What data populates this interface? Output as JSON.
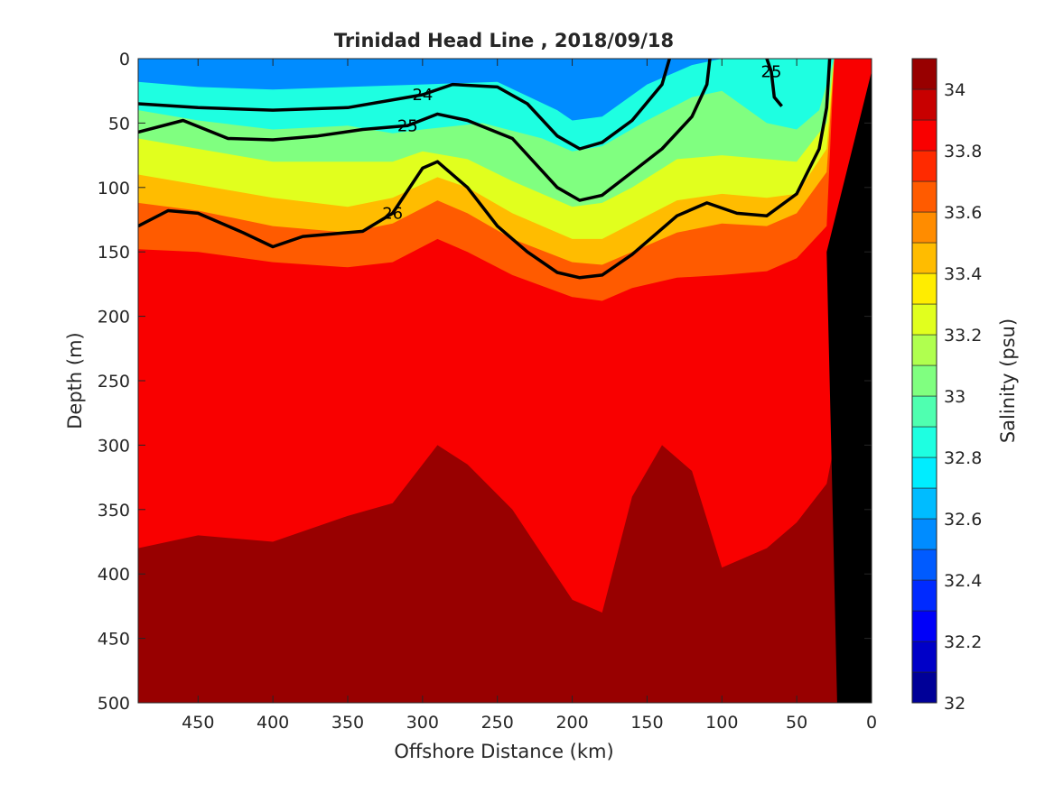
{
  "chart_data": {
    "type": "heatmap",
    "subtype": "filled-contour section with density contour overlay",
    "title": "Trinidad Head Line , 2018/09/18",
    "xlabel": "Offshore Distance (km)",
    "ylabel": "Depth (m)",
    "xlim": [
      490,
      0
    ],
    "ylim": [
      0,
      500
    ],
    "x_direction": "reversed",
    "y_direction": "reversed (depth increases downward)",
    "xticks": [
      "450",
      "400",
      "350",
      "300",
      "250",
      "200",
      "150",
      "100",
      "50",
      "0"
    ],
    "yticks": [
      "0",
      "50",
      "100",
      "150",
      "200",
      "250",
      "300",
      "350",
      "400",
      "450",
      "500"
    ],
    "colorbar": {
      "label": "Salinity (psu)",
      "range": [
        32,
        34.1
      ],
      "step": 0.1,
      "colormap": "jet",
      "ticks": [
        "32",
        "32.2",
        "32.4",
        "32.6",
        "32.8",
        "33",
        "33.2",
        "33.4",
        "33.6",
        "33.8",
        "34"
      ]
    },
    "salinity_layers": [
      {
        "isohaline": 32.8,
        "depth_profile": [
          [
            490,
            18
          ],
          [
            450,
            22
          ],
          [
            400,
            24
          ],
          [
            350,
            22
          ],
          [
            300,
            20
          ],
          [
            250,
            18
          ],
          [
            210,
            40
          ],
          [
            200,
            48
          ],
          [
            180,
            45
          ],
          [
            150,
            20
          ],
          [
            120,
            5
          ],
          [
            100,
            0
          ],
          [
            0,
            0
          ]
        ]
      },
      {
        "isohaline": 33.0,
        "depth_profile": [
          [
            490,
            40
          ],
          [
            450,
            48
          ],
          [
            400,
            55
          ],
          [
            350,
            52
          ],
          [
            320,
            58
          ],
          [
            300,
            55
          ],
          [
            260,
            50
          ],
          [
            220,
            62
          ],
          [
            200,
            72
          ],
          [
            180,
            68
          ],
          [
            150,
            48
          ],
          [
            120,
            30
          ],
          [
            100,
            25
          ],
          [
            70,
            50
          ],
          [
            50,
            55
          ],
          [
            35,
            40
          ],
          [
            25,
            0
          ],
          [
            0,
            0
          ]
        ]
      },
      {
        "isohaline": 33.2,
        "depth_profile": [
          [
            490,
            62
          ],
          [
            450,
            70
          ],
          [
            400,
            80
          ],
          [
            350,
            80
          ],
          [
            320,
            80
          ],
          [
            300,
            72
          ],
          [
            270,
            78
          ],
          [
            240,
            95
          ],
          [
            200,
            115
          ],
          [
            180,
            112
          ],
          [
            160,
            100
          ],
          [
            130,
            78
          ],
          [
            100,
            75
          ],
          [
            70,
            78
          ],
          [
            50,
            80
          ],
          [
            30,
            50
          ],
          [
            25,
            0
          ],
          [
            0,
            0
          ]
        ]
      },
      {
        "isohaline": 33.4,
        "depth_profile": [
          [
            490,
            90
          ],
          [
            450,
            98
          ],
          [
            400,
            108
          ],
          [
            350,
            115
          ],
          [
            320,
            108
          ],
          [
            290,
            92
          ],
          [
            270,
            100
          ],
          [
            240,
            120
          ],
          [
            200,
            140
          ],
          [
            180,
            140
          ],
          [
            160,
            128
          ],
          [
            130,
            110
          ],
          [
            100,
            105
          ],
          [
            70,
            108
          ],
          [
            50,
            105
          ],
          [
            30,
            70
          ],
          [
            25,
            0
          ],
          [
            0,
            0
          ]
        ]
      },
      {
        "isohaline": 33.6,
        "depth_profile": [
          [
            490,
            112
          ],
          [
            450,
            118
          ],
          [
            400,
            130
          ],
          [
            350,
            135
          ],
          [
            320,
            128
          ],
          [
            290,
            110
          ],
          [
            270,
            120
          ],
          [
            240,
            140
          ],
          [
            200,
            158
          ],
          [
            180,
            160
          ],
          [
            160,
            150
          ],
          [
            130,
            135
          ],
          [
            100,
            128
          ],
          [
            70,
            130
          ],
          [
            50,
            120
          ],
          [
            30,
            88
          ],
          [
            25,
            0
          ],
          [
            0,
            0
          ]
        ]
      },
      {
        "isohaline": 33.8,
        "depth_profile": [
          [
            490,
            148
          ],
          [
            450,
            150
          ],
          [
            400,
            158
          ],
          [
            350,
            162
          ],
          [
            320,
            158
          ],
          [
            290,
            140
          ],
          [
            270,
            150
          ],
          [
            240,
            168
          ],
          [
            200,
            185
          ],
          [
            180,
            188
          ],
          [
            160,
            178
          ],
          [
            130,
            170
          ],
          [
            100,
            168
          ],
          [
            70,
            165
          ],
          [
            50,
            155
          ],
          [
            30,
            130
          ],
          [
            25,
            0
          ],
          [
            0,
            0
          ]
        ]
      },
      {
        "isohaline": 34.0,
        "depth_profile": [
          [
            490,
            380
          ],
          [
            450,
            370
          ],
          [
            400,
            375
          ],
          [
            350,
            355
          ],
          [
            320,
            345
          ],
          [
            290,
            300
          ],
          [
            270,
            315
          ],
          [
            240,
            350
          ],
          [
            200,
            420
          ],
          [
            180,
            430
          ],
          [
            160,
            340
          ],
          [
            140,
            300
          ],
          [
            120,
            320
          ],
          [
            100,
            395
          ],
          [
            70,
            380
          ],
          [
            50,
            360
          ],
          [
            30,
            330
          ],
          [
            25,
            300
          ]
        ]
      }
    ],
    "density_contours": [
      {
        "level": 24,
        "labeled": true,
        "points": [
          [
            490,
            35
          ],
          [
            450,
            38
          ],
          [
            400,
            40
          ],
          [
            350,
            38
          ],
          [
            300,
            28
          ],
          [
            280,
            20
          ],
          [
            250,
            22
          ],
          [
            230,
            35
          ],
          [
            210,
            60
          ],
          [
            195,
            70
          ],
          [
            180,
            65
          ],
          [
            160,
            48
          ],
          [
            140,
            20
          ],
          [
            135,
            0
          ]
        ]
      },
      {
        "level": 25,
        "labeled": true,
        "points": [
          [
            490,
            57
          ],
          [
            460,
            48
          ],
          [
            430,
            62
          ],
          [
            400,
            63
          ],
          [
            370,
            60
          ],
          [
            340,
            55
          ],
          [
            310,
            52
          ],
          [
            290,
            43
          ],
          [
            270,
            48
          ],
          [
            240,
            62
          ],
          [
            210,
            100
          ],
          [
            195,
            110
          ],
          [
            180,
            106
          ],
          [
            160,
            88
          ],
          [
            140,
            70
          ],
          [
            120,
            45
          ],
          [
            110,
            20
          ],
          [
            108,
            0
          ]
        ]
      },
      {
        "level": 25,
        "labeled": true,
        "points": [
          [
            70,
            0
          ],
          [
            67,
            10
          ],
          [
            65,
            30
          ],
          [
            60,
            37
          ]
        ]
      },
      {
        "level": 26,
        "labeled": true,
        "points": [
          [
            490,
            130
          ],
          [
            470,
            118
          ],
          [
            450,
            120
          ],
          [
            420,
            135
          ],
          [
            400,
            146
          ],
          [
            380,
            138
          ],
          [
            360,
            136
          ],
          [
            340,
            134
          ],
          [
            320,
            120
          ],
          [
            300,
            85
          ],
          [
            290,
            80
          ],
          [
            270,
            100
          ],
          [
            250,
            130
          ],
          [
            230,
            150
          ],
          [
            210,
            166
          ],
          [
            195,
            170
          ],
          [
            180,
            168
          ],
          [
            160,
            152
          ],
          [
            130,
            122
          ],
          [
            110,
            112
          ],
          [
            90,
            120
          ],
          [
            70,
            122
          ],
          [
            50,
            105
          ],
          [
            35,
            70
          ],
          [
            30,
            38
          ],
          [
            28,
            0
          ]
        ]
      }
    ],
    "seafloor_mask": {
      "color": "black",
      "outline": [
        [
          23,
          500
        ],
        [
          25,
          400
        ],
        [
          27,
          300
        ],
        [
          29,
          200
        ],
        [
          30,
          150
        ],
        [
          0,
          10
        ],
        [
          0,
          500
        ]
      ]
    }
  }
}
